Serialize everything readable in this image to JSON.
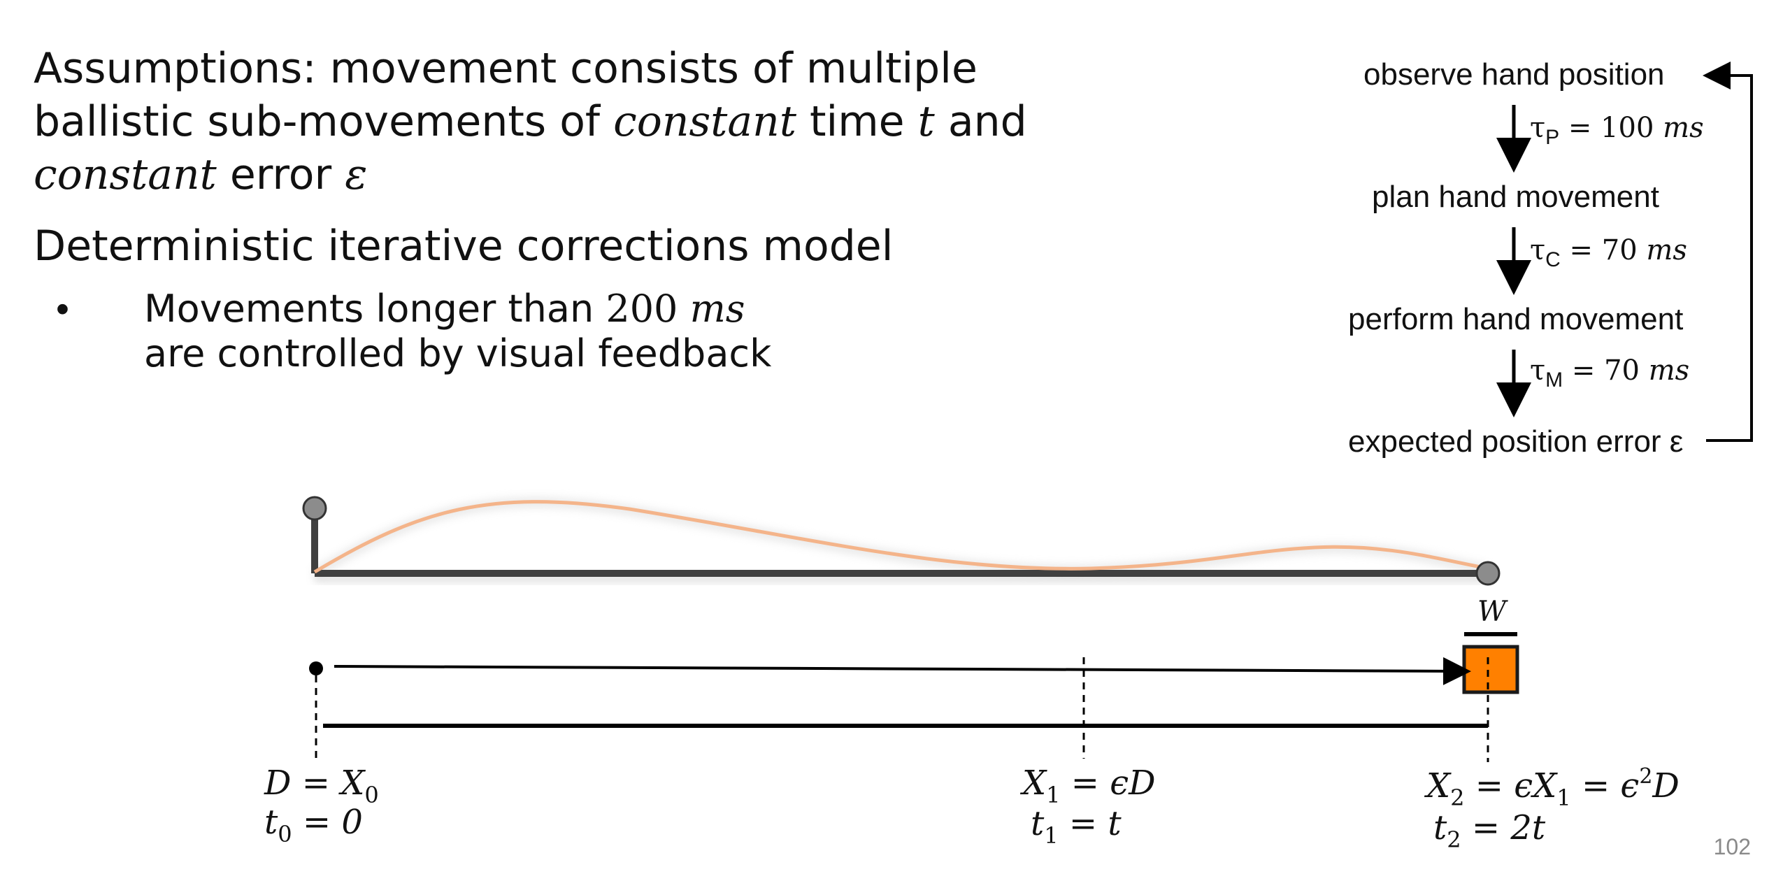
{
  "assumptions": {
    "line1": "Assumptions: movement consists of multiple",
    "line2_pre": "ballistic sub-movements of ",
    "line2_italic": "constant",
    "line2_post": " time ",
    "line2_var": "t",
    "line2_end": " and",
    "line3_italic": "constant",
    "line3_post": " error ",
    "line3_var": "ε"
  },
  "model_heading": "Deterministic iterative corrections model",
  "bullet": {
    "line1_pre": "Movements longer than ",
    "line1_value": "200",
    "line1_unit": "ms",
    "line2": "are controlled by visual feedback"
  },
  "feedback_loop": {
    "steps": [
      "observe hand position",
      "plan hand movement",
      "perform hand movement",
      "expected position error ε"
    ],
    "delays": [
      {
        "symbol": "τ",
        "sub": "P",
        "equals": "= 100",
        "unit": "ms"
      },
      {
        "symbol": "τ",
        "sub": "C",
        "equals": " = 70",
        "unit": "ms"
      },
      {
        "symbol": "τ",
        "sub": "M",
        "equals": "=  70",
        "unit": "ms"
      }
    ]
  },
  "width_label": "W",
  "positions": {
    "start_x": "D = X",
    "start_x_sub": "0",
    "start_t": "t",
    "start_t_sub": "0",
    "start_t_val": " = 0",
    "mid_x": "X",
    "mid_x_sub": "1",
    "mid_x_val": " = ϵD",
    "mid_t": "t",
    "mid_t_sub": "1",
    "mid_t_val": " = t",
    "end_x": "X",
    "end_x_sub": "2",
    "end_x_val1": " = ϵX",
    "end_x_sub2": "1",
    "end_x_val2": " = ϵ",
    "end_x_sup": "2",
    "end_x_val3": "D",
    "end_t": "t",
    "end_t_sub": "2",
    "end_t_val": " = 2t"
  },
  "page_number": "102",
  "colors": {
    "target_fill": "#ff8000",
    "trajectory": "#f4b48a",
    "bar": "#404040",
    "knob": "#8c8c8c"
  }
}
